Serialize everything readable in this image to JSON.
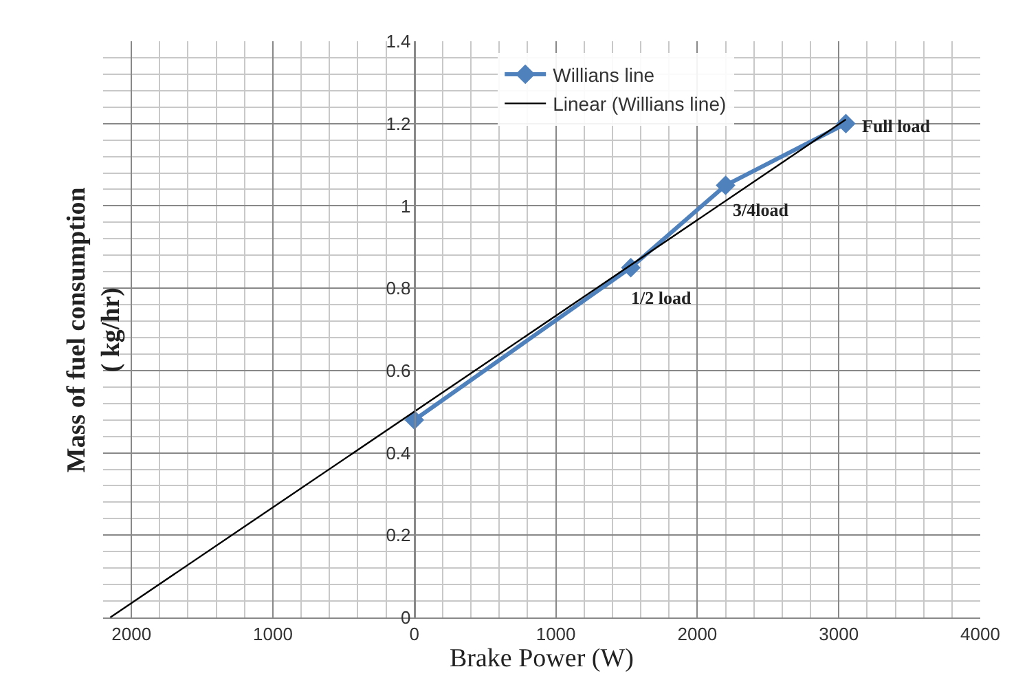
{
  "chart_data": {
    "type": "line",
    "xlabel": "Brake Power (W)",
    "ylabel": "Mass of fuel consumption\n( kg/hr)",
    "series": [
      {
        "name": "Willians line",
        "color": "#4f81bd",
        "x": [
          0,
          1530,
          2200,
          3050
        ],
        "values": [
          0.48,
          0.85,
          1.05,
          1.2
        ],
        "marker": "diamond"
      },
      {
        "name": "Linear (Willians line)",
        "color": "#000000",
        "type": "line",
        "x": [
          -2150,
          3050
        ],
        "values": [
          0,
          1.21
        ],
        "marker": "none"
      }
    ],
    "xlim": [
      -2200,
      4000
    ],
    "xticks": [
      {
        "value": -2000,
        "label": "2000"
      },
      {
        "value": -1000,
        "label": "1000"
      },
      0,
      1000,
      2000,
      3000,
      4000
    ],
    "ylim": [
      0,
      1.4
    ],
    "yticks": [
      0,
      0.2,
      0.4,
      0.6,
      0.8,
      1,
      1.2,
      1.4
    ],
    "annotations": [
      {
        "text": "1/2 load",
        "x": 1530,
        "y": 0.85
      },
      {
        "text": "3/4load",
        "x": 2200,
        "y": 1.05
      },
      {
        "text": "Full load",
        "x": 3050,
        "y": 1.2
      }
    ],
    "grid": true,
    "legend": "top",
    "line_style": "solid"
  }
}
